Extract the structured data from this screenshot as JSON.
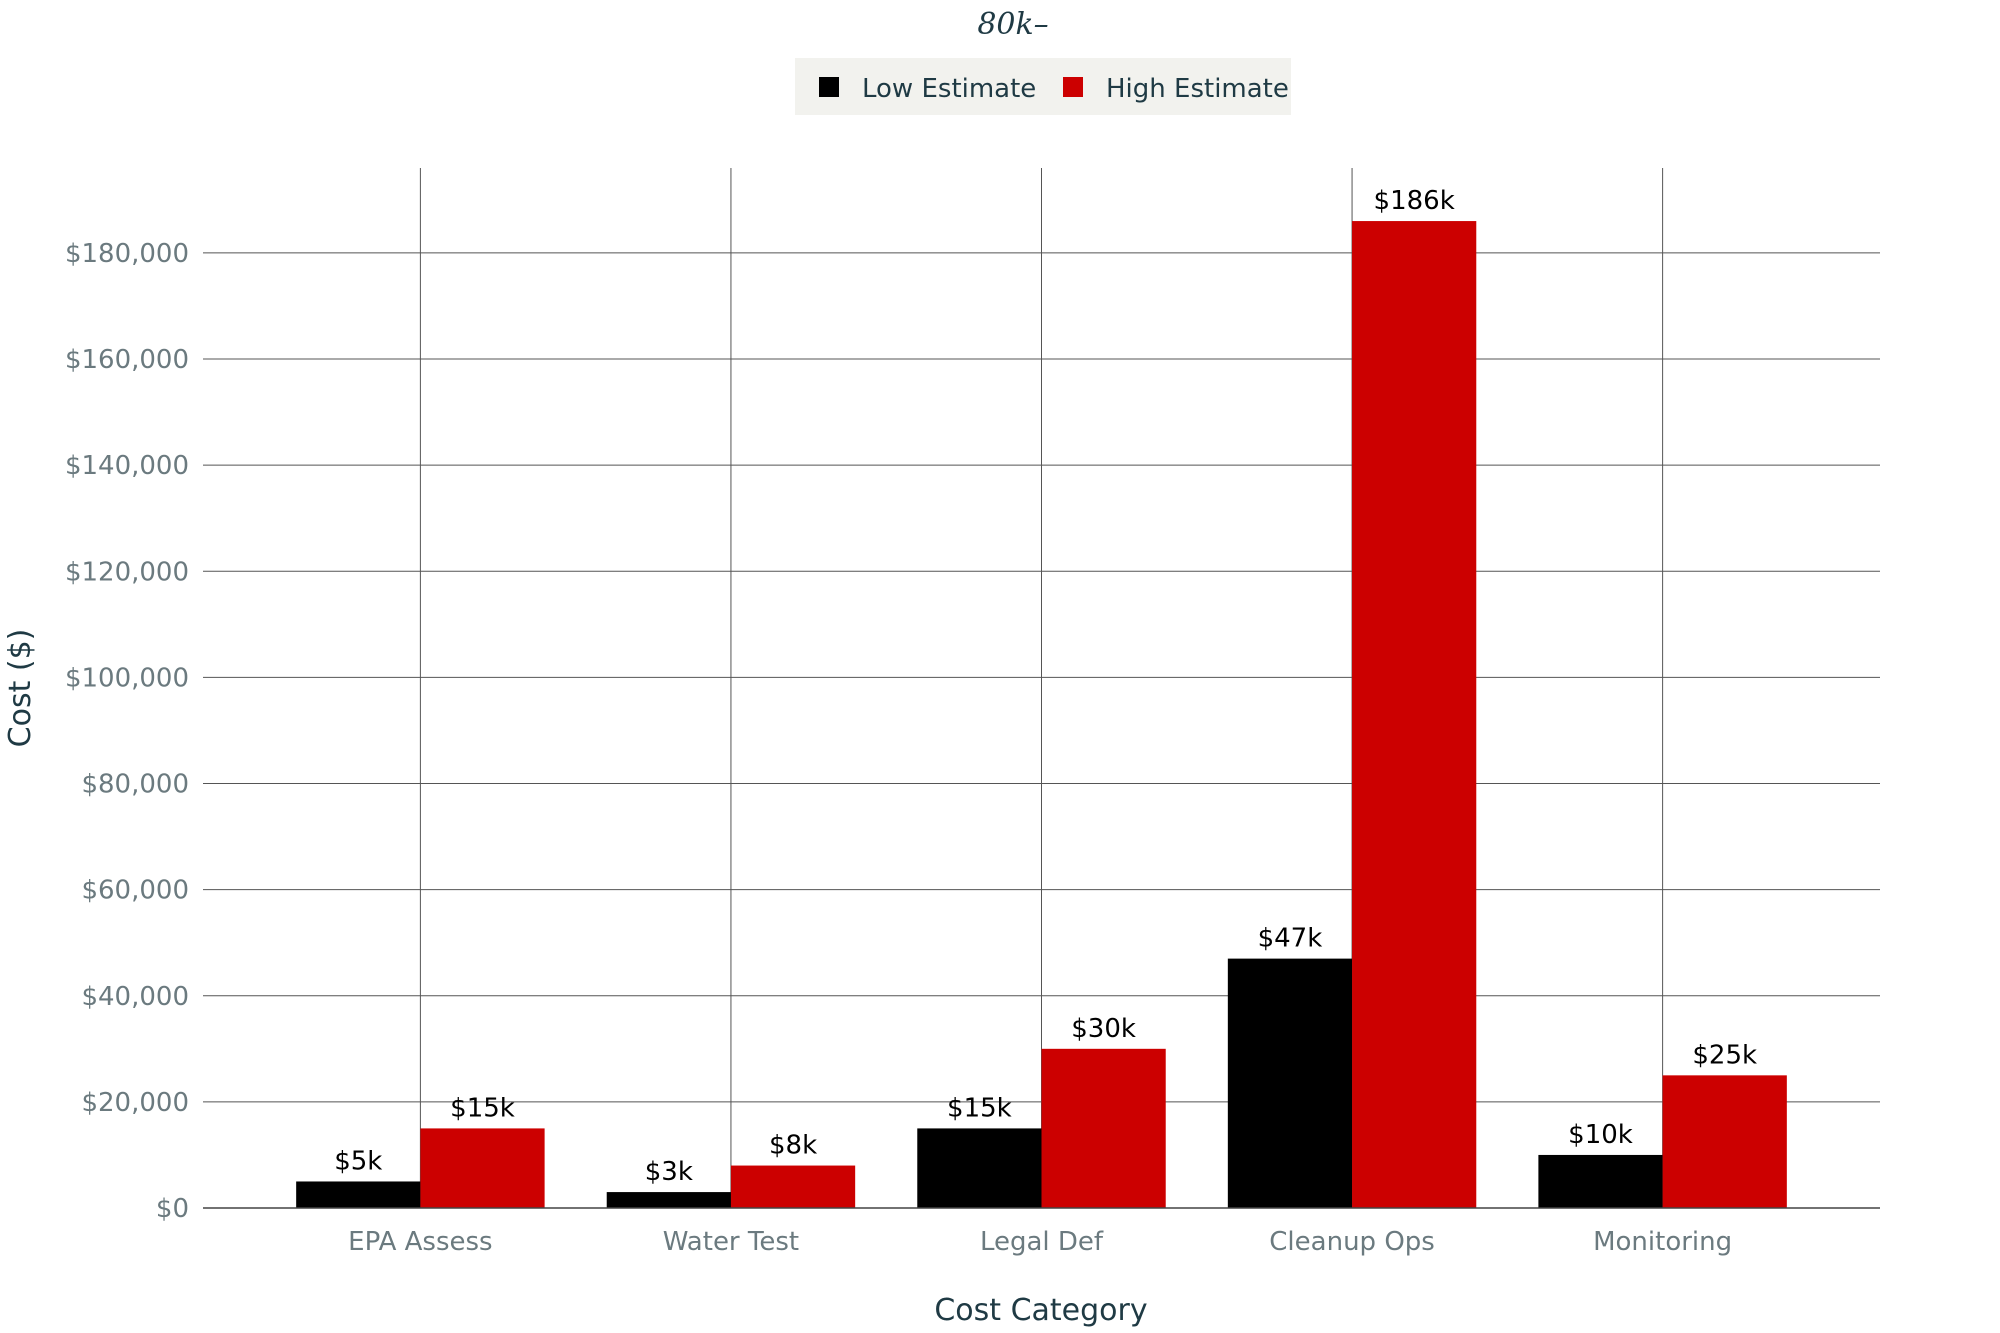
{
  "chart_data": {
    "type": "bar",
    "title": "80k–",
    "xlabel": "Cost Category",
    "ylabel": "Cost ($)",
    "categories": [
      "EPA Assess",
      "Water Test",
      "Legal Def",
      "Cleanup Ops",
      "Monitoring"
    ],
    "series": [
      {
        "name": "Low Estimate",
        "color": "#000000",
        "values": [
          5000,
          3000,
          15000,
          47000,
          10000
        ],
        "labels": [
          "$5k",
          "$3k",
          "$15k",
          "$47k",
          "$10k"
        ]
      },
      {
        "name": "High Estimate",
        "color": "#cc0000",
        "values": [
          15000,
          8000,
          30000,
          186000,
          25000
        ],
        "labels": [
          "$15k",
          "$8k",
          "$30k",
          "$186k",
          "$25k"
        ]
      }
    ],
    "ylim": [
      0,
      196000
    ],
    "yticks": [
      0,
      20000,
      40000,
      60000,
      80000,
      100000,
      120000,
      140000,
      160000,
      180000
    ],
    "ytick_labels": [
      "$0",
      "$20,000",
      "$40,000",
      "$60,000",
      "$80,000",
      "$100,000",
      "$120,000",
      "$140,000",
      "$160,000",
      "$180,000"
    ],
    "grid": true,
    "legend_position": "top-center",
    "legend_background": "#f2f2ee"
  }
}
